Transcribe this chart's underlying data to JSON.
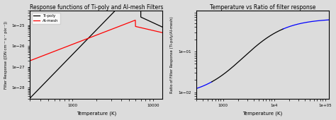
{
  "left_title": "Response functions of Ti-poly and Al-mesh Filters",
  "right_title": "Temperature vs Ratio of filter response",
  "left_xlabel": "Temperature (K)",
  "left_ylabel": "Filter Response ([DN cm⁻² s⁻¹ pix⁻¹])",
  "right_xlabel": "Temperature (K)",
  "right_ylabel": "Ratio of Filter Response (Ti-poly/Al-mesh)",
  "legend_ti_poly": "Ti-poly",
  "legend_al_mesh": "Al-mesh",
  "left_xlim": [
    300.0,
    13000.0
  ],
  "left_ylim": [
    3e-29,
    5e-25
  ],
  "right_xlim": [
    300.0,
    120000.0
  ],
  "right_ylim": [
    0.007,
    1.0
  ],
  "ti_poly_color": "black",
  "al_mesh_color": "red",
  "background_color": "#dcdcdc"
}
